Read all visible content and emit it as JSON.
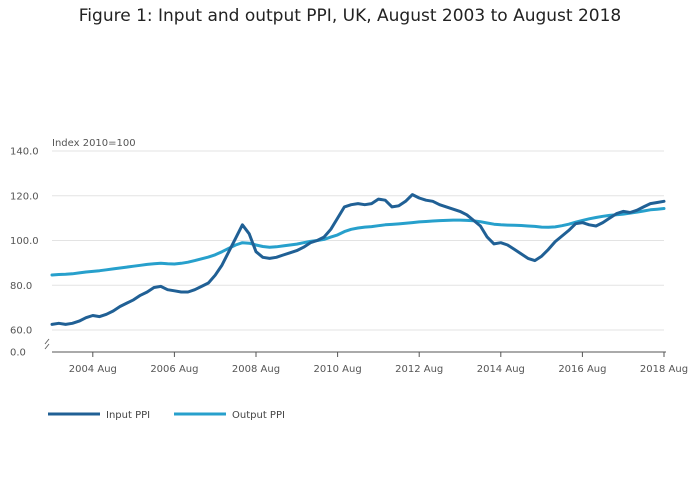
{
  "figure": {
    "title": "Figure 1: Input and output PPI, UK, August 2003 to August 2018"
  },
  "chart_data": {
    "type": "line",
    "title": "Figure 1: Input and output PPI, UK, August 2003 to August 2018",
    "ylabel": "Index 2010=100",
    "ylim": [
      0,
      140
    ],
    "y_axis_break": [
      0,
      55
    ],
    "y_ticks": [
      "0.0",
      "60.0",
      "80.0",
      "100.0",
      "120.0",
      "140.0"
    ],
    "x_ticks": [
      "2004 Aug",
      "2006 Aug",
      "2008 Aug",
      "2010 Aug",
      "2012 Aug",
      "2014 Aug",
      "2016 Aug",
      "2018 Aug"
    ],
    "grid": true,
    "legend_position": "bottom-left",
    "x": [
      "2003-08",
      "2003-10",
      "2003-12",
      "2004-02",
      "2004-04",
      "2004-06",
      "2004-08",
      "2004-10",
      "2004-12",
      "2005-02",
      "2005-04",
      "2005-06",
      "2005-08",
      "2005-10",
      "2005-12",
      "2006-02",
      "2006-04",
      "2006-06",
      "2006-08",
      "2006-10",
      "2006-12",
      "2007-02",
      "2007-04",
      "2007-06",
      "2007-08",
      "2007-10",
      "2007-12",
      "2008-02",
      "2008-04",
      "2008-06",
      "2008-08",
      "2008-10",
      "2008-12",
      "2009-02",
      "2009-04",
      "2009-06",
      "2009-08",
      "2009-10",
      "2009-12",
      "2010-02",
      "2010-04",
      "2010-06",
      "2010-08",
      "2010-10",
      "2010-12",
      "2011-02",
      "2011-04",
      "2011-06",
      "2011-08",
      "2011-10",
      "2011-12",
      "2012-02",
      "2012-04",
      "2012-06",
      "2012-08",
      "2012-10",
      "2012-12",
      "2013-02",
      "2013-04",
      "2013-06",
      "2013-08",
      "2013-10",
      "2013-12",
      "2014-02",
      "2014-04",
      "2014-06",
      "2014-08",
      "2014-10",
      "2014-12",
      "2015-02",
      "2015-04",
      "2015-06",
      "2015-08",
      "2015-10",
      "2015-12",
      "2016-02",
      "2016-04",
      "2016-06",
      "2016-08",
      "2016-10",
      "2016-12",
      "2017-02",
      "2017-04",
      "2017-06",
      "2017-08",
      "2017-10",
      "2017-12",
      "2018-02",
      "2018-04",
      "2018-06",
      "2018-08"
    ],
    "series": [
      {
        "name": "Input PPI",
        "color": "#206095",
        "values": [
          62.5,
          63.0,
          62.5,
          63.0,
          64.0,
          65.5,
          66.5,
          66.0,
          67.0,
          68.5,
          70.5,
          72.0,
          73.5,
          75.5,
          77.0,
          79.0,
          79.5,
          78.0,
          77.5,
          77.0,
          77.0,
          78.0,
          79.5,
          81.0,
          84.5,
          89.0,
          95.0,
          101.0,
          107.0,
          103.0,
          95.0,
          92.5,
          92.0,
          92.5,
          93.5,
          94.5,
          95.5,
          97.0,
          99.0,
          100.0,
          101.5,
          105.0,
          110.0,
          115.0,
          116.0,
          116.5,
          116.0,
          116.5,
          118.5,
          118.0,
          115.0,
          115.5,
          117.5,
          120.5,
          119.0,
          118.0,
          117.5,
          116.0,
          115.0,
          114.0,
          113.0,
          111.5,
          109.0,
          106.5,
          101.5,
          98.5,
          99.0,
          98.0,
          96.0,
          94.0,
          92.0,
          91.0,
          93.0,
          96.0,
          99.5,
          102.0,
          104.5,
          107.5,
          108.0,
          107.0,
          106.5,
          108.0,
          110.0,
          112.0,
          113.0,
          112.5,
          113.5,
          115.0,
          116.5,
          117.0,
          117.5
        ]
      },
      {
        "name": "Output PPI",
        "color": "#27A0CC",
        "values": [
          84.6,
          84.8,
          84.9,
          85.1,
          85.5,
          85.9,
          86.2,
          86.5,
          86.9,
          87.3,
          87.7,
          88.1,
          88.5,
          88.9,
          89.3,
          89.6,
          89.8,
          89.6,
          89.5,
          89.8,
          90.3,
          91.0,
          91.8,
          92.6,
          93.6,
          95.0,
          96.5,
          98.0,
          99.0,
          98.8,
          98.0,
          97.3,
          97.0,
          97.2,
          97.6,
          98.0,
          98.4,
          99.0,
          99.6,
          100.0,
          100.5,
          101.5,
          102.5,
          104.0,
          105.0,
          105.6,
          106.0,
          106.2,
          106.6,
          107.0,
          107.2,
          107.4,
          107.7,
          108.0,
          108.3,
          108.5,
          108.7,
          108.9,
          109.0,
          109.1,
          109.1,
          109.0,
          108.8,
          108.4,
          107.8,
          107.3,
          107.0,
          106.9,
          106.8,
          106.7,
          106.5,
          106.3,
          106.0,
          105.9,
          106.1,
          106.6,
          107.3,
          108.2,
          109.0,
          109.7,
          110.3,
          110.8,
          111.2,
          111.5,
          111.8,
          112.2,
          112.7,
          113.2,
          113.7,
          114.0,
          114.3
        ]
      }
    ]
  }
}
